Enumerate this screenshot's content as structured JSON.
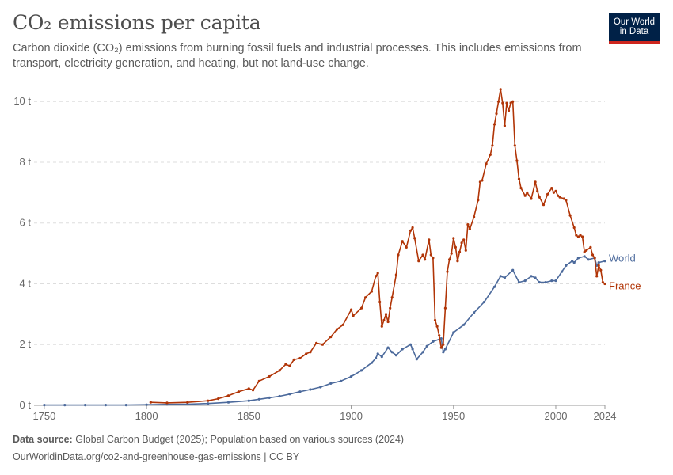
{
  "header": {
    "title": "CO₂ emissions per capita",
    "subtitle": "Carbon dioxide (CO₂) emissions from burning fossil fuels and industrial processes. This includes emissions from transport, electricity generation, and heating, but not land-use change."
  },
  "logo": {
    "line1": "Our World",
    "line2": "in Data",
    "bg_color": "#002147",
    "accent_color": "#ce261e"
  },
  "footer": {
    "source_label": "Data source:",
    "source_text": "Global Carbon Budget (2025); Population based on various sources (2024)",
    "url_text": "OurWorldinData.org/co2-and-greenhouse-gas-emissions | CC BY"
  },
  "chart_data": {
    "type": "line",
    "xlabel": "",
    "ylabel": "",
    "xlim": [
      1745,
      2024
    ],
    "ylim": [
      0,
      10.5
    ],
    "x_ticks": [
      {
        "value": 1750,
        "label": "1750"
      },
      {
        "value": 1800,
        "label": "1800"
      },
      {
        "value": 1850,
        "label": "1850"
      },
      {
        "value": 1900,
        "label": "1900"
      },
      {
        "value": 1950,
        "label": "1950"
      },
      {
        "value": 2000,
        "label": "2000"
      },
      {
        "value": 2024,
        "label": "2024"
      }
    ],
    "y_ticks": [
      {
        "value": 0,
        "label": "0 t"
      },
      {
        "value": 2,
        "label": "2 t"
      },
      {
        "value": 4,
        "label": "4 t"
      },
      {
        "value": 6,
        "label": "6 t"
      },
      {
        "value": 8,
        "label": "8 t"
      },
      {
        "value": 10,
        "label": "10 t"
      }
    ],
    "grid": "horizontal-dashed",
    "legend": "inline-right",
    "series": [
      {
        "name": "World",
        "color": "#4c6a9c",
        "points": [
          [
            1750,
            0.01
          ],
          [
            1760,
            0.01
          ],
          [
            1770,
            0.01
          ],
          [
            1780,
            0.01
          ],
          [
            1790,
            0.01
          ],
          [
            1800,
            0.02
          ],
          [
            1810,
            0.03
          ],
          [
            1820,
            0.04
          ],
          [
            1830,
            0.06
          ],
          [
            1840,
            0.1
          ],
          [
            1850,
            0.15
          ],
          [
            1855,
            0.2
          ],
          [
            1860,
            0.25
          ],
          [
            1865,
            0.3
          ],
          [
            1870,
            0.37
          ],
          [
            1875,
            0.45
          ],
          [
            1880,
            0.52
          ],
          [
            1885,
            0.6
          ],
          [
            1890,
            0.72
          ],
          [
            1895,
            0.8
          ],
          [
            1900,
            0.95
          ],
          [
            1905,
            1.15
          ],
          [
            1910,
            1.4
          ],
          [
            1912,
            1.55
          ],
          [
            1913,
            1.7
          ],
          [
            1915,
            1.6
          ],
          [
            1918,
            1.9
          ],
          [
            1920,
            1.75
          ],
          [
            1922,
            1.65
          ],
          [
            1925,
            1.85
          ],
          [
            1929,
            2.0
          ],
          [
            1930,
            1.85
          ],
          [
            1932,
            1.52
          ],
          [
            1935,
            1.75
          ],
          [
            1937,
            1.95
          ],
          [
            1940,
            2.1
          ],
          [
            1944,
            2.2
          ],
          [
            1945,
            1.75
          ],
          [
            1946,
            1.85
          ],
          [
            1950,
            2.4
          ],
          [
            1955,
            2.65
          ],
          [
            1960,
            3.05
          ],
          [
            1965,
            3.4
          ],
          [
            1970,
            3.9
          ],
          [
            1973,
            4.25
          ],
          [
            1975,
            4.2
          ],
          [
            1979,
            4.45
          ],
          [
            1982,
            4.05
          ],
          [
            1985,
            4.1
          ],
          [
            1988,
            4.25
          ],
          [
            1990,
            4.2
          ],
          [
            1992,
            4.05
          ],
          [
            1995,
            4.05
          ],
          [
            1998,
            4.1
          ],
          [
            2000,
            4.1
          ],
          [
            2003,
            4.4
          ],
          [
            2005,
            4.6
          ],
          [
            2008,
            4.75
          ],
          [
            2009,
            4.7
          ],
          [
            2011,
            4.85
          ],
          [
            2014,
            4.9
          ],
          [
            2016,
            4.8
          ],
          [
            2019,
            4.85
          ],
          [
            2020,
            4.6
          ],
          [
            2021,
            4.7
          ],
          [
            2024,
            4.75
          ]
        ]
      },
      {
        "name": "France",
        "color": "#b13507",
        "points": [
          [
            1802,
            0.1
          ],
          [
            1810,
            0.08
          ],
          [
            1820,
            0.1
          ],
          [
            1830,
            0.15
          ],
          [
            1835,
            0.22
          ],
          [
            1840,
            0.32
          ],
          [
            1845,
            0.45
          ],
          [
            1850,
            0.55
          ],
          [
            1852,
            0.5
          ],
          [
            1855,
            0.8
          ],
          [
            1860,
            0.95
          ],
          [
            1865,
            1.15
          ],
          [
            1868,
            1.35
          ],
          [
            1870,
            1.3
          ],
          [
            1872,
            1.5
          ],
          [
            1875,
            1.55
          ],
          [
            1878,
            1.7
          ],
          [
            1880,
            1.75
          ],
          [
            1883,
            2.05
          ],
          [
            1886,
            2.0
          ],
          [
            1890,
            2.25
          ],
          [
            1893,
            2.5
          ],
          [
            1896,
            2.65
          ],
          [
            1900,
            3.15
          ],
          [
            1901,
            2.95
          ],
          [
            1905,
            3.2
          ],
          [
            1907,
            3.55
          ],
          [
            1910,
            3.75
          ],
          [
            1912,
            4.25
          ],
          [
            1913,
            4.35
          ],
          [
            1914,
            3.4
          ],
          [
            1915,
            2.6
          ],
          [
            1916,
            2.8
          ],
          [
            1917,
            3.0
          ],
          [
            1918,
            2.75
          ],
          [
            1919,
            3.2
          ],
          [
            1920,
            3.55
          ],
          [
            1922,
            4.3
          ],
          [
            1923,
            4.95
          ],
          [
            1925,
            5.4
          ],
          [
            1927,
            5.2
          ],
          [
            1929,
            5.75
          ],
          [
            1930,
            5.85
          ],
          [
            1931,
            5.5
          ],
          [
            1933,
            4.75
          ],
          [
            1935,
            4.95
          ],
          [
            1936,
            4.8
          ],
          [
            1938,
            5.45
          ],
          [
            1939,
            4.95
          ],
          [
            1940,
            4.85
          ],
          [
            1941,
            2.8
          ],
          [
            1942,
            2.6
          ],
          [
            1943,
            2.3
          ],
          [
            1944,
            1.9
          ],
          [
            1945,
            2.0
          ],
          [
            1946,
            3.2
          ],
          [
            1947,
            4.4
          ],
          [
            1948,
            4.8
          ],
          [
            1949,
            5.0
          ],
          [
            1950,
            5.5
          ],
          [
            1951,
            5.2
          ],
          [
            1952,
            4.75
          ],
          [
            1953,
            5.05
          ],
          [
            1954,
            5.35
          ],
          [
            1955,
            5.45
          ],
          [
            1956,
            5.1
          ],
          [
            1957,
            5.95
          ],
          [
            1958,
            5.8
          ],
          [
            1960,
            6.2
          ],
          [
            1962,
            6.75
          ],
          [
            1963,
            7.35
          ],
          [
            1964,
            7.4
          ],
          [
            1966,
            7.95
          ],
          [
            1968,
            8.25
          ],
          [
            1969,
            8.55
          ],
          [
            1970,
            9.25
          ],
          [
            1971,
            9.6
          ],
          [
            1972,
            10.0
          ],
          [
            1973,
            10.4
          ],
          [
            1974,
            9.95
          ],
          [
            1975,
            9.2
          ],
          [
            1976,
            9.95
          ],
          [
            1977,
            9.7
          ],
          [
            1978,
            9.95
          ],
          [
            1979,
            10.0
          ],
          [
            1980,
            8.55
          ],
          [
            1981,
            8.05
          ],
          [
            1982,
            7.45
          ],
          [
            1983,
            7.15
          ],
          [
            1985,
            6.9
          ],
          [
            1986,
            7.0
          ],
          [
            1988,
            6.8
          ],
          [
            1990,
            7.35
          ],
          [
            1991,
            7.05
          ],
          [
            1992,
            6.85
          ],
          [
            1994,
            6.6
          ],
          [
            1996,
            6.95
          ],
          [
            1998,
            7.15
          ],
          [
            1999,
            7.0
          ],
          [
            2000,
            7.05
          ],
          [
            2001,
            6.9
          ],
          [
            2002,
            6.85
          ],
          [
            2004,
            6.8
          ],
          [
            2005,
            6.75
          ],
          [
            2007,
            6.25
          ],
          [
            2009,
            5.85
          ],
          [
            2010,
            5.6
          ],
          [
            2011,
            5.55
          ],
          [
            2012,
            5.6
          ],
          [
            2013,
            5.55
          ],
          [
            2014,
            5.05
          ],
          [
            2015,
            5.1
          ],
          [
            2017,
            5.2
          ],
          [
            2018,
            4.95
          ],
          [
            2019,
            4.85
          ],
          [
            2020,
            4.25
          ],
          [
            2021,
            4.6
          ],
          [
            2022,
            4.45
          ],
          [
            2023,
            4.05
          ],
          [
            2024,
            4.0
          ]
        ]
      }
    ]
  }
}
